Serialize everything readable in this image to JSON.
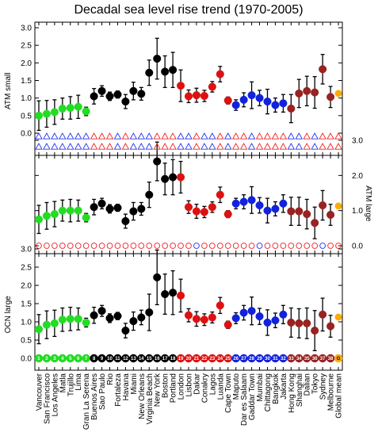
{
  "chart_data": {
    "type": "scatter",
    "title": "Decadal sea level rise trend (1970-2005)",
    "categories": [
      "Vancouver",
      "San Francisco",
      "Los Angeles",
      "Matla",
      "Trujillo",
      "Lima",
      "Gran La Serena",
      "Buenos Aires",
      "Sao Paulo",
      "Rio",
      "Fortaleza",
      "Havana",
      "Miami",
      "New Orleans",
      "Virginia Beach",
      "New York",
      "Boston",
      "Portland",
      "London",
      "Lisbon",
      "Dakar",
      "Conakry",
      "Lagos",
      "Luanda",
      "Cape Town",
      "Maputo",
      "Dar es Salaam",
      "Gaddar Town",
      "Mumbai",
      "Chittagong",
      "Bangkok",
      "Jakarta",
      "Hong Kong",
      "Shanghai",
      "Dalian",
      "Tokyo",
      "Sydney",
      "Melbourne",
      "Global mean"
    ],
    "group_colors": [
      "#22dd22",
      "#22dd22",
      "#22dd22",
      "#22dd22",
      "#22dd22",
      "#22dd22",
      "#22dd22",
      "#000000",
      "#000000",
      "#000000",
      "#000000",
      "#000000",
      "#000000",
      "#000000",
      "#000000",
      "#000000",
      "#000000",
      "#000000",
      "#dd1111",
      "#dd1111",
      "#dd1111",
      "#dd1111",
      "#dd1111",
      "#dd1111",
      "#dd1111",
      "#1122dd",
      "#1122dd",
      "#1122dd",
      "#1122dd",
      "#1122dd",
      "#1122dd",
      "#1122dd",
      "#992222",
      "#992222",
      "#992222",
      "#992222",
      "#992222",
      "#992222",
      "#ffaa00"
    ],
    "panels": [
      {
        "ylabel": "ATM small",
        "axis_side": "left",
        "ylim": [
          -0.15,
          3.0
        ],
        "ticks": [
          "0.0",
          "0.5",
          "1.0",
          "1.5",
          "2.0",
          "2.5",
          "3.0"
        ],
        "values": [
          0.5,
          0.55,
          0.6,
          0.7,
          0.72,
          0.75,
          0.62,
          1.05,
          1.2,
          1.05,
          1.1,
          0.9,
          1.2,
          1.12,
          1.72,
          2.12,
          1.75,
          1.8,
          1.35,
          1.05,
          1.08,
          1.06,
          1.32,
          1.68,
          0.93,
          0.8,
          0.95,
          1.08,
          1.0,
          0.9,
          0.8,
          0.85,
          0.7,
          1.13,
          1.2,
          1.16,
          1.82,
          1.03,
          1.13
        ],
        "errors": [
          0.42,
          0.38,
          0.35,
          0.3,
          0.32,
          0.33,
          0.12,
          0.22,
          0.15,
          0.12,
          0.1,
          0.2,
          0.25,
          0.18,
          0.36,
          0.58,
          0.45,
          0.5,
          0.45,
          0.18,
          0.2,
          0.16,
          0.15,
          0.22,
          0.1,
          0.15,
          0.2,
          0.38,
          0.22,
          0.35,
          0.2,
          0.25,
          0.4,
          0.4,
          0.42,
          0.45,
          0.42,
          0.3,
          0.06
        ]
      },
      {
        "ylabel": "ATM large",
        "axis_side": "right",
        "ylim": [
          -0.15,
          3.0
        ],
        "ticks": [
          "0.0",
          "1.0",
          "2.0",
          "3.0"
        ],
        "values": [
          0.75,
          0.85,
          0.9,
          1.0,
          1.0,
          1.0,
          0.8,
          1.1,
          1.2,
          1.05,
          1.08,
          0.7,
          0.98,
          1.05,
          1.45,
          2.4,
          1.9,
          1.95,
          1.95,
          1.1,
          0.98,
          0.96,
          1.1,
          1.45,
          0.9,
          1.2,
          1.25,
          1.3,
          1.15,
          1.0,
          1.05,
          1.2,
          0.98,
          0.98,
          0.9,
          0.65,
          1.15,
          0.88,
          1.13
        ],
        "errors": [
          0.4,
          0.38,
          0.36,
          0.3,
          0.32,
          0.3,
          0.12,
          0.22,
          0.15,
          0.12,
          0.1,
          0.2,
          0.25,
          0.18,
          0.36,
          0.55,
          0.45,
          0.5,
          0.45,
          0.18,
          0.2,
          0.16,
          0.15,
          0.22,
          0.1,
          0.15,
          0.2,
          0.38,
          0.22,
          0.35,
          0.2,
          0.25,
          0.4,
          0.4,
          0.42,
          0.45,
          0.42,
          0.3,
          0.06
        ]
      },
      {
        "ylabel": "OCN large",
        "axis_side": "left",
        "ylim": [
          -0.15,
          3.2
        ],
        "ticks": [
          "0.0",
          "0.5",
          "1.0",
          "1.5",
          "2.0",
          "2.5",
          "3.0"
        ],
        "values": [
          0.8,
          0.92,
          0.96,
          1.06,
          1.08,
          1.08,
          0.98,
          1.18,
          1.3,
          1.1,
          1.16,
          0.76,
          1.02,
          1.12,
          1.26,
          2.22,
          1.76,
          1.8,
          1.72,
          1.18,
          1.08,
          1.06,
          1.12,
          1.45,
          0.92,
          1.1,
          1.25,
          1.3,
          1.15,
          0.98,
          1.04,
          1.2,
          0.98,
          0.96,
          0.96,
          0.76,
          1.2,
          0.88,
          1.13
        ],
        "errors": [
          0.4,
          0.38,
          0.36,
          0.32,
          0.32,
          0.3,
          0.12,
          0.22,
          0.15,
          0.12,
          0.1,
          0.2,
          0.25,
          0.2,
          0.5,
          0.75,
          0.55,
          0.6,
          0.45,
          0.18,
          0.2,
          0.16,
          0.15,
          0.22,
          0.1,
          0.15,
          0.2,
          0.38,
          0.22,
          0.35,
          0.2,
          0.25,
          0.4,
          0.4,
          0.42,
          0.55,
          0.45,
          0.3,
          0.06
        ]
      }
    ],
    "triangle_rows": [
      [
        "blue",
        "blue",
        "blue",
        "blue",
        "blue",
        "blue",
        "blue",
        "red",
        "red",
        "red",
        "blue",
        "red",
        "blue",
        "blue",
        "blue",
        "red",
        "red",
        "red",
        "blue",
        "blue",
        "red",
        "blue",
        "blue",
        "red",
        "blue",
        "red",
        "red",
        "blue",
        "red",
        "red",
        "red",
        "red",
        "blue",
        "blue",
        "red",
        "blue",
        "red",
        "red",
        "red"
      ],
      [
        "blue",
        "blue",
        "blue",
        "blue",
        "blue",
        "blue",
        "blue",
        "red",
        "red",
        "red",
        "blue",
        "red",
        "blue",
        "blue",
        "blue",
        "red",
        "red",
        "red",
        "blue",
        "blue",
        "red",
        "blue",
        "blue",
        "red",
        "blue",
        "red",
        "red",
        "blue",
        "red",
        "red",
        "red",
        "red",
        "blue",
        "blue",
        "red",
        "blue",
        "red",
        "red",
        "red"
      ]
    ],
    "circle_row": [
      "red",
      "red",
      "red",
      "red",
      "red",
      "red",
      "red",
      "red",
      "red",
      "red",
      "red",
      "red",
      "red",
      "red",
      "red",
      "red",
      "red",
      "red",
      "red",
      "red",
      "blue",
      "red",
      "red",
      "red",
      "red",
      "red",
      "red",
      "red",
      "blue",
      "red",
      "red",
      "red",
      "red",
      "red",
      "red",
      "red",
      "blue",
      "red",
      "red"
    ],
    "index_labels": [
      "1",
      "2",
      "3",
      "4",
      "5",
      "6",
      "7",
      "8",
      "9",
      "10",
      "11",
      "12",
      "13",
      "14",
      "15",
      "16",
      "17",
      "18",
      "19",
      "20",
      "21",
      "22",
      "23",
      "24",
      "25",
      "26",
      "27",
      "28",
      "29",
      "30",
      "31",
      "32",
      "33",
      "34",
      "35",
      "36",
      "37",
      "38",
      "G"
    ]
  }
}
